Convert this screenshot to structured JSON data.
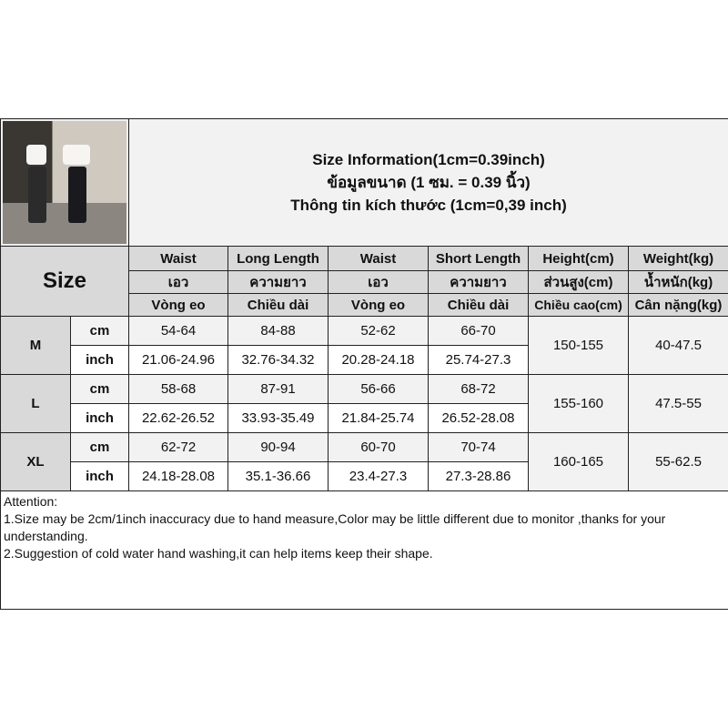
{
  "title_lines": [
    "Size Information(1cm=0.39inch)",
    "ข้อมูลขนาด (1 ซม. = 0.39 นิ้ว)",
    "Thông tin kích thước (1cm=0,39 inch)"
  ],
  "size_label": "Size",
  "columns": [
    {
      "en": "Waist",
      "th": "เอว",
      "vi": "Vòng eo"
    },
    {
      "en": "Long Length",
      "th": "ความยาว",
      "vi": "Chiều dài"
    },
    {
      "en": "Waist",
      "th": "เอว",
      "vi": "Vòng eo"
    },
    {
      "en": "Short Length",
      "th": "ความยาว",
      "vi": "Chiều dài"
    },
    {
      "en": "Height(cm)",
      "th": "ส่วนสูง(cm)",
      "vi": "Chiều cao(cm)"
    },
    {
      "en": "Weight(kg)",
      "th": "น้ำหนัก(kg)",
      "vi": "Cân nặng(kg)"
    }
  ],
  "units": {
    "cm": "cm",
    "inch": "inch"
  },
  "sizes": [
    {
      "name": "M",
      "cm": [
        "54-64",
        "84-88",
        "52-62",
        "66-70"
      ],
      "inch": [
        "21.06-24.96",
        "32.76-34.32",
        "20.28-24.18",
        "25.74-27.3"
      ],
      "height": "150-155",
      "weight": "40-47.5"
    },
    {
      "name": "L",
      "cm": [
        "58-68",
        "87-91",
        "56-66",
        "68-72"
      ],
      "inch": [
        "22.62-26.52",
        "33.93-35.49",
        "21.84-25.74",
        "26.52-28.08"
      ],
      "height": "155-160",
      "weight": "47.5-55"
    },
    {
      "name": "XL",
      "cm": [
        "62-72",
        "90-94",
        "60-70",
        "70-74"
      ],
      "inch": [
        "24.18-28.08",
        "35.1-36.66",
        "23.4-27.3",
        "27.3-28.86"
      ],
      "height": "160-165",
      "weight": "55-62.5"
    }
  ],
  "attention": {
    "heading": "Attention:",
    "lines": [
      "1.Size may be 2cm/1inch inaccuracy due to hand measure,Color may be little different due to monitor ,thanks for your understanding.",
      "2.Suggestion of cold water hand washing,it can help items keep their shape."
    ]
  }
}
